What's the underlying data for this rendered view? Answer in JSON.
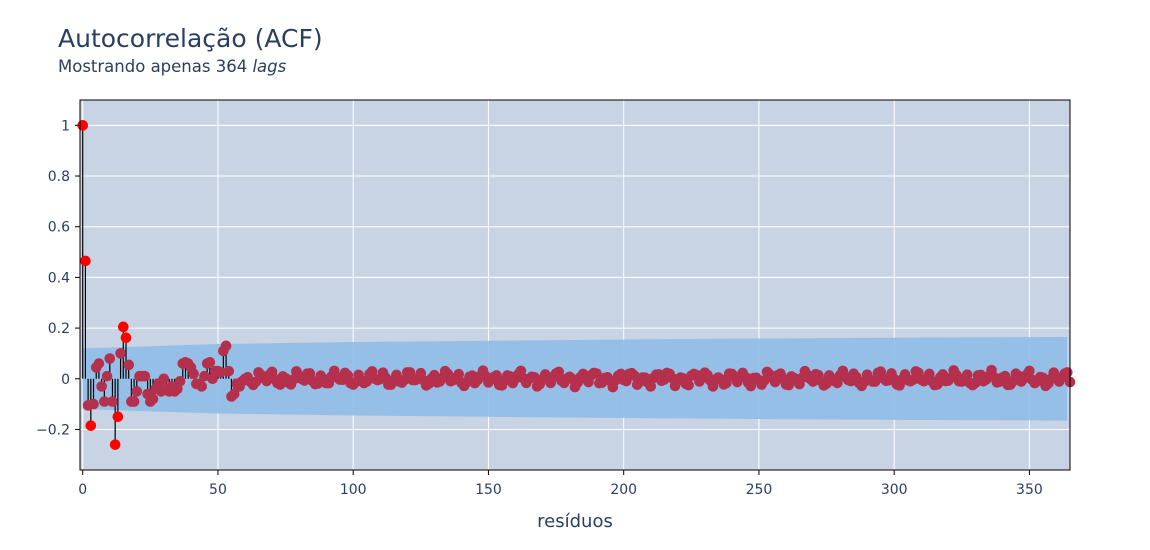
{
  "chart_data": {
    "type": "scatter",
    "title": "Autocorrelação (ACF)",
    "subtitle_prefix": "Mostrando apenas 364",
    "subtitle_emph": "lags",
    "xlabel": "resíduos",
    "ylabel": "",
    "xlim": [
      -1,
      365
    ],
    "ylim": [
      -0.36,
      1.1
    ],
    "x_ticks": [
      0,
      50,
      100,
      150,
      200,
      250,
      300,
      350
    ],
    "y_ticks": [
      1,
      0.8,
      0.6,
      0.4,
      0.2,
      0,
      -0.2
    ],
    "y_tick_labels": [
      "1",
      "0.8",
      "0.6",
      "0.4",
      "0.2",
      "0",
      "−0.2"
    ],
    "grid": true,
    "confidence_band": {
      "x": [
        0,
        50,
        100,
        150,
        200,
        250,
        300,
        364
      ],
      "upper": [
        0.12,
        0.137,
        0.145,
        0.15,
        0.155,
        0.159,
        0.162,
        0.165
      ],
      "lower": [
        -0.12,
        -0.137,
        -0.145,
        -0.15,
        -0.155,
        -0.159,
        -0.162,
        -0.165
      ]
    },
    "significant_lags": {
      "x": [
        0,
        1,
        3,
        12,
        13,
        15,
        16
      ],
      "y": [
        1.0,
        0.465,
        -0.185,
        -0.26,
        -0.15,
        0.205,
        0.162
      ]
    },
    "lags_head": {
      "x": [
        2,
        4,
        5,
        6,
        7,
        8,
        9,
        10,
        11,
        14,
        17,
        18,
        19,
        20,
        21,
        22,
        23,
        24,
        25,
        26,
        27,
        28,
        29,
        30,
        31,
        32,
        33,
        34,
        35,
        36,
        37,
        38,
        39,
        40,
        41,
        42,
        43,
        44,
        45,
        46,
        47,
        48,
        49,
        50,
        51,
        52,
        53,
        54,
        55,
        56,
        57,
        58,
        59,
        60
      ],
      "y": [
        -0.105,
        -0.1,
        0.045,
        0.06,
        -0.03,
        -0.09,
        0.01,
        0.08,
        -0.09,
        0.1,
        0.055,
        -0.09,
        -0.09,
        -0.05,
        0.01,
        0.01,
        0.01,
        -0.06,
        -0.09,
        -0.08,
        -0.04,
        -0.02,
        -0.05,
        0.0,
        -0.04,
        -0.05,
        -0.03,
        -0.05,
        -0.04,
        -0.01,
        0.06,
        0.065,
        0.06,
        0.045,
        0.02,
        -0.02,
        -0.02,
        -0.03,
        0.01,
        0.06,
        0.065,
        0.0,
        0.03,
        0.03,
        0.025,
        0.11,
        0.13,
        0.03,
        -0.07,
        -0.06,
        -0.02,
        -0.03,
        -0.01,
        0.0
      ]
    },
    "lags_tail_amplitude": 0.035,
    "colors": {
      "plot_bg": "#c8d4e3",
      "band": "#8fbde6",
      "marker_sig": "#ff0000",
      "marker": "#b5304c",
      "stem": "#000000",
      "grid": "#ffffff",
      "text": "#2a3f5f"
    }
  }
}
